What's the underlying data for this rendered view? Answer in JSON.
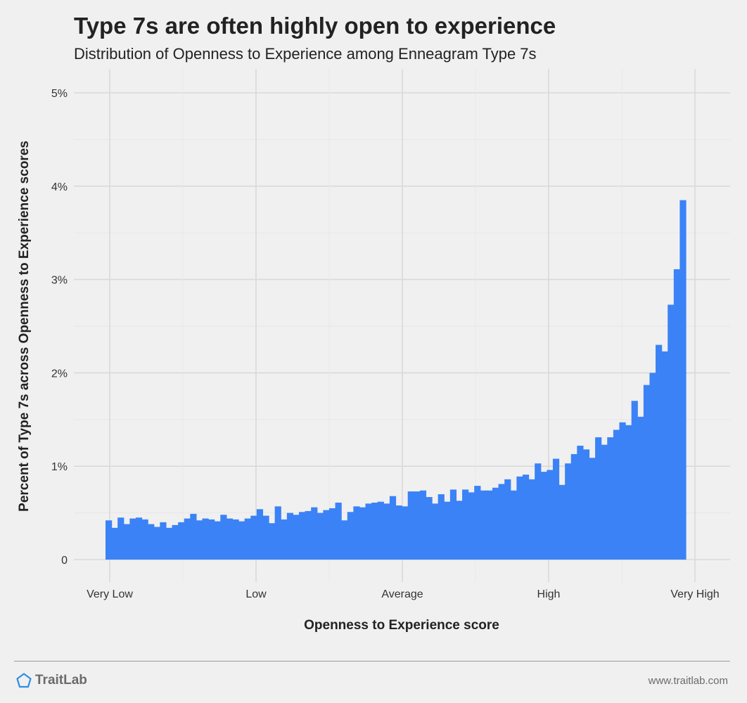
{
  "header": {
    "title": "Type 7s are often highly open to experience",
    "subtitle": "Distribution of Openness to Experience among Enneagram Type 7s"
  },
  "footer": {
    "brand": "TraitLab",
    "url": "www.traitlab.com",
    "logo_icon": "pentagon-icon"
  },
  "colors": {
    "bar": "#3b82f6",
    "background": "#f0f0f0",
    "grid_major": "#d9d9d9",
    "grid_minor": "#e6e6e6",
    "logo": "#2f8fe0"
  },
  "chart_data": {
    "type": "bar",
    "title": "Type 7s are often highly open to experience",
    "subtitle": "Distribution of Openness to Experience among Enneagram Type 7s",
    "xlabel": "Openness to Experience score",
    "ylabel": "Percent of Type 7s across Openness to Experience scores",
    "x_tick_labels": [
      "Very Low",
      "Low",
      "Average",
      "High",
      "Very High"
    ],
    "y_tick_labels": [
      "0",
      "1%",
      "2%",
      "3%",
      "4%",
      "5%"
    ],
    "y_ticks": [
      0,
      1,
      2,
      3,
      4,
      5
    ],
    "ylim": [
      0,
      5
    ],
    "grid": true,
    "legend": "none",
    "values": [
      0.42,
      0.34,
      0.45,
      0.38,
      0.44,
      0.45,
      0.43,
      0.38,
      0.35,
      0.4,
      0.34,
      0.37,
      0.4,
      0.44,
      0.49,
      0.42,
      0.44,
      0.43,
      0.41,
      0.48,
      0.44,
      0.43,
      0.41,
      0.44,
      0.47,
      0.54,
      0.47,
      0.39,
      0.57,
      0.43,
      0.5,
      0.48,
      0.51,
      0.52,
      0.56,
      0.5,
      0.53,
      0.55,
      0.61,
      0.42,
      0.51,
      0.57,
      0.56,
      0.6,
      0.61,
      0.62,
      0.6,
      0.68,
      0.58,
      0.57,
      0.73,
      0.73,
      0.74,
      0.67,
      0.6,
      0.7,
      0.62,
      0.75,
      0.63,
      0.75,
      0.72,
      0.79,
      0.74,
      0.74,
      0.77,
      0.81,
      0.86,
      0.74,
      0.89,
      0.91,
      0.86,
      1.03,
      0.94,
      0.96,
      1.08,
      0.8,
      1.03,
      1.13,
      1.22,
      1.18,
      1.09,
      1.31,
      1.23,
      1.31,
      1.39,
      1.47,
      1.44,
      1.7,
      1.53,
      1.87,
      2.0,
      2.3,
      2.23,
      2.73,
      3.11,
      3.85
    ]
  }
}
